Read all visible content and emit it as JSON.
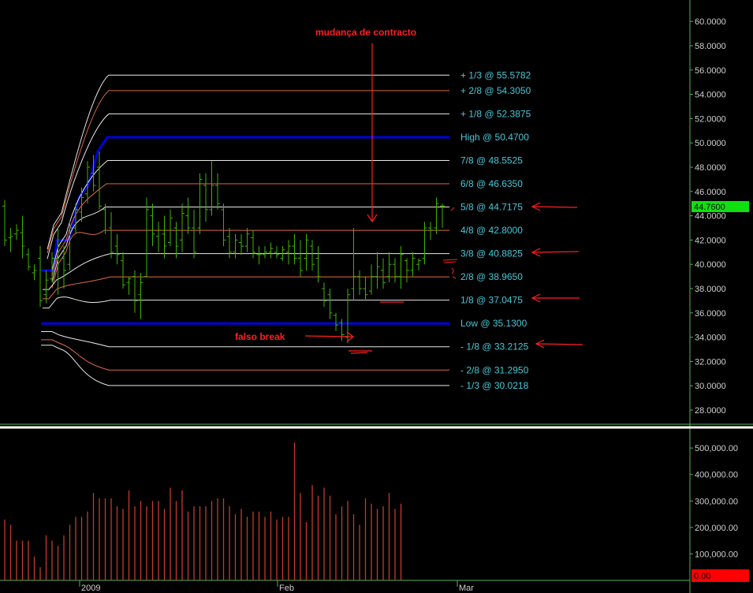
{
  "colors": {
    "background": "#000000",
    "price_bar": "#3cb400",
    "frame_line": "#5aaf5a",
    "volume_bar": "#c43a2a",
    "high_low_line": "#0000e0",
    "white_line": "#e8e8e8",
    "orange_line": "#e06a48",
    "label_cyan": "#45c8d8",
    "axis_text": "#cfcfcf",
    "annotation_red": "#ff2020",
    "last_price_bg": "#10e010",
    "last_volume_bg": "#ff0000"
  },
  "annotations": {
    "contract_change": "mudança de contracto",
    "false_break": "falso break"
  },
  "chart_data": [
    {
      "type": "bar",
      "subtype": "ohlc-with-murrey-levels",
      "ylim": [
        26.5,
        61.5
      ],
      "y_ticks": [
        28,
        30,
        32,
        34,
        36,
        38,
        40,
        42,
        44,
        46,
        48,
        50,
        52,
        54,
        56,
        58,
        60
      ],
      "y_tick_labels": [
        "28.0000",
        "30.0000",
        "32.0000",
        "34.0000",
        "36.0000",
        "38.0000",
        "40.0000",
        "42.0000",
        "44.0000",
        "46.0000",
        "48.0000",
        "50.0000",
        "52.0000",
        "54.0000",
        "56.0000",
        "58.0000",
        "60.0000"
      ],
      "last_price": "44.7600",
      "levels": [
        {
          "label": "+ 1/3 @ 55.5782",
          "value": 55.5782,
          "style": "white"
        },
        {
          "label": "+ 2/8 @ 54.3050",
          "value": 54.305,
          "style": "orange"
        },
        {
          "label": "+ 1/8 @ 52.3875",
          "value": 52.3875,
          "style": "white"
        },
        {
          "label": "High @ 50.4700",
          "value": 50.47,
          "style": "blue"
        },
        {
          "label": "7/8 @ 48.5525",
          "value": 48.5525,
          "style": "white"
        },
        {
          "label": "6/8 @ 46.6350",
          "value": 46.635,
          "style": "orange"
        },
        {
          "label": "5/8 @ 44.7175",
          "value": 44.7175,
          "style": "white"
        },
        {
          "label": "4/8 @ 42.8000",
          "value": 42.8,
          "style": "orange"
        },
        {
          "label": "3/8 @ 40.8825",
          "value": 40.8825,
          "style": "white"
        },
        {
          "label": "2/8 @ 38.9650",
          "value": 38.965,
          "style": "orange"
        },
        {
          "label": "1/8 @ 37.0475",
          "value": 37.0475,
          "style": "white"
        },
        {
          "label": "Low  @ 35.1300",
          "value": 35.13,
          "style": "blue"
        },
        {
          "label": "- 1/8 @ 33.2125",
          "value": 33.2125,
          "style": "white"
        },
        {
          "label": "- 2/8 @ 31.2950",
          "value": 31.295,
          "style": "orange"
        },
        {
          "label": "- 1/3 @ 30.0218",
          "value": 30.0218,
          "style": "white"
        }
      ],
      "bars": [
        {
          "i": 0,
          "h": 45.3,
          "l": 41.5,
          "o": 44.8,
          "c": 42.0
        },
        {
          "i": 1,
          "h": 43.0,
          "l": 41.0,
          "o": 42.2,
          "c": 42.3
        },
        {
          "i": 2,
          "h": 43.3,
          "l": 42.0,
          "o": 42.5,
          "c": 42.8
        },
        {
          "i": 3,
          "h": 44.0,
          "l": 40.5,
          "o": 42.6,
          "c": 41.5
        },
        {
          "i": 4,
          "h": 41.3,
          "l": 39.5,
          "o": 40.8,
          "c": 39.8
        },
        {
          "i": 5,
          "h": 40.0,
          "l": 38.7,
          "o": 39.3,
          "c": 39.5
        },
        {
          "i": 6,
          "h": 41.5,
          "l": 36.5,
          "o": 40.5,
          "c": 37.0
        },
        {
          "i": 7,
          "h": 39.5,
          "l": 36.8,
          "o": 37.5,
          "c": 38.7
        },
        {
          "i": 8,
          "h": 41.0,
          "l": 38.5,
          "o": 38.8,
          "c": 40.5
        },
        {
          "i": 9,
          "h": 43.0,
          "l": 37.5,
          "o": 40.5,
          "c": 41.5
        },
        {
          "i": 10,
          "h": 41.5,
          "l": 38.0,
          "o": 40.5,
          "c": 39.5
        },
        {
          "i": 11,
          "h": 43.5,
          "l": 39.5,
          "o": 40.0,
          "c": 43.0
        },
        {
          "i": 12,
          "h": 45.0,
          "l": 42.5,
          "o": 43.0,
          "c": 44.5
        },
        {
          "i": 13,
          "h": 46.3,
          "l": 43.5,
          "o": 44.3,
          "c": 45.5
        },
        {
          "i": 14,
          "h": 48.5,
          "l": 45.0,
          "o": 45.8,
          "c": 48.0
        },
        {
          "i": 15,
          "h": 49.0,
          "l": 46.0,
          "o": 47.5,
          "c": 46.5
        },
        {
          "i": 16,
          "h": 49.3,
          "l": 44.5,
          "o": 48.0,
          "c": 44.8
        },
        {
          "i": 17,
          "h": 45.0,
          "l": 42.5,
          "o": 44.5,
          "c": 42.8
        },
        {
          "i": 18,
          "h": 44.3,
          "l": 40.5,
          "o": 43.0,
          "c": 41.0
        },
        {
          "i": 19,
          "h": 42.5,
          "l": 40.0,
          "o": 41.5,
          "c": 40.8
        },
        {
          "i": 20,
          "h": 41.0,
          "l": 38.0,
          "o": 40.3,
          "c": 38.3
        },
        {
          "i": 21,
          "h": 39.0,
          "l": 37.5,
          "o": 38.5,
          "c": 38.8
        },
        {
          "i": 22,
          "h": 39.5,
          "l": 36.0,
          "o": 39.0,
          "c": 37.0
        },
        {
          "i": 23,
          "h": 39.3,
          "l": 35.5,
          "o": 37.5,
          "c": 38.5
        },
        {
          "i": 24,
          "h": 45.5,
          "l": 39.0,
          "o": 39.0,
          "c": 44.5
        },
        {
          "i": 25,
          "h": 45.0,
          "l": 41.5,
          "o": 44.0,
          "c": 42.5
        },
        {
          "i": 26,
          "h": 43.5,
          "l": 41.0,
          "o": 42.3,
          "c": 42.8
        },
        {
          "i": 27,
          "h": 44.0,
          "l": 40.5,
          "o": 42.5,
          "c": 41.5
        },
        {
          "i": 28,
          "h": 44.5,
          "l": 41.5,
          "o": 41.8,
          "c": 43.8
        },
        {
          "i": 29,
          "h": 43.5,
          "l": 40.5,
          "o": 43.0,
          "c": 41.5
        },
        {
          "i": 30,
          "h": 45.0,
          "l": 41.0,
          "o": 42.0,
          "c": 44.2
        },
        {
          "i": 31,
          "h": 45.5,
          "l": 42.5,
          "o": 44.0,
          "c": 43.0
        },
        {
          "i": 32,
          "h": 44.5,
          "l": 40.5,
          "o": 43.0,
          "c": 41.0
        },
        {
          "i": 33,
          "h": 47.5,
          "l": 42.5,
          "o": 43.0,
          "c": 47.0
        },
        {
          "i": 34,
          "h": 47.5,
          "l": 43.5,
          "o": 46.5,
          "c": 44.5
        },
        {
          "i": 35,
          "h": 48.5,
          "l": 44.0,
          "o": 44.5,
          "c": 46.5
        },
        {
          "i": 36,
          "h": 47.5,
          "l": 44.5,
          "o": 46.5,
          "c": 45.0
        },
        {
          "i": 37,
          "h": 45.0,
          "l": 41.5,
          "o": 44.5,
          "c": 42.0
        },
        {
          "i": 38,
          "h": 43.0,
          "l": 40.5,
          "o": 42.3,
          "c": 41.0
        },
        {
          "i": 39,
          "h": 42.5,
          "l": 40.5,
          "o": 41.0,
          "c": 42.0
        },
        {
          "i": 40,
          "h": 42.5,
          "l": 40.8,
          "o": 41.8,
          "c": 41.5
        },
        {
          "i": 41,
          "h": 43.0,
          "l": 41.0,
          "o": 41.5,
          "c": 42.5
        },
        {
          "i": 42,
          "h": 42.8,
          "l": 40.5,
          "o": 42.2,
          "c": 41.0
        },
        {
          "i": 43,
          "h": 41.5,
          "l": 40.0,
          "o": 40.8,
          "c": 40.8
        },
        {
          "i": 44,
          "h": 41.5,
          "l": 40.5,
          "o": 40.8,
          "c": 41.0
        },
        {
          "i": 45,
          "h": 41.8,
          "l": 40.5,
          "o": 41.0,
          "c": 41.3
        },
        {
          "i": 46,
          "h": 41.5,
          "l": 40.5,
          "o": 41.0,
          "c": 40.8
        },
        {
          "i": 47,
          "h": 41.5,
          "l": 40.3,
          "o": 40.5,
          "c": 41.2
        },
        {
          "i": 48,
          "h": 42.0,
          "l": 40.0,
          "o": 41.0,
          "c": 41.5
        },
        {
          "i": 49,
          "h": 42.5,
          "l": 40.0,
          "o": 41.5,
          "c": 40.5
        },
        {
          "i": 50,
          "h": 42.0,
          "l": 39.0,
          "o": 40.5,
          "c": 39.5
        },
        {
          "i": 51,
          "h": 42.5,
          "l": 39.5,
          "o": 40.5,
          "c": 42.0
        },
        {
          "i": 52,
          "h": 42.0,
          "l": 39.5,
          "o": 41.5,
          "c": 40.0
        },
        {
          "i": 53,
          "h": 41.5,
          "l": 38.5,
          "o": 40.5,
          "c": 39.0
        },
        {
          "i": 54,
          "h": 38.5,
          "l": 36.5,
          "o": 38.0,
          "c": 37.0
        },
        {
          "i": 55,
          "h": 38.0,
          "l": 35.5,
          "o": 37.5,
          "c": 36.0
        },
        {
          "i": 56,
          "h": 36.0,
          "l": 34.5,
          "o": 35.8,
          "c": 35.0
        },
        {
          "i": 57,
          "h": 35.5,
          "l": 33.7,
          "o": 35.2,
          "c": 34.2
        },
        {
          "i": 58,
          "h": 38.0,
          "l": 33.5,
          "o": 34.0,
          "c": 37.5
        },
        {
          "i": 59,
          "h": 43.0,
          "l": 37.0,
          "o": 38.0,
          "c": 39.0
        },
        {
          "i": 60,
          "h": 39.5,
          "l": 37.5,
          "o": 39.0,
          "c": 38.0
        },
        {
          "i": 61,
          "h": 39.0,
          "l": 37.0,
          "o": 38.0,
          "c": 37.5
        },
        {
          "i": 62,
          "h": 40.0,
          "l": 37.5,
          "o": 37.8,
          "c": 39.0
        },
        {
          "i": 63,
          "h": 41.0,
          "l": 38.0,
          "o": 39.0,
          "c": 39.8
        },
        {
          "i": 64,
          "h": 40.5,
          "l": 38.0,
          "o": 39.5,
          "c": 38.5
        },
        {
          "i": 65,
          "h": 41.0,
          "l": 38.5,
          "o": 39.0,
          "c": 40.0
        },
        {
          "i": 66,
          "h": 40.5,
          "l": 38.5,
          "o": 40.0,
          "c": 39.0
        },
        {
          "i": 67,
          "h": 41.5,
          "l": 38.0,
          "o": 39.0,
          "c": 40.8
        },
        {
          "i": 68,
          "h": 40.5,
          "l": 38.5,
          "o": 40.3,
          "c": 39.5
        },
        {
          "i": 69,
          "h": 41.0,
          "l": 39.0,
          "o": 39.5,
          "c": 40.5
        },
        {
          "i": 70,
          "h": 40.5,
          "l": 39.5,
          "o": 40.0,
          "c": 40.3
        },
        {
          "i": 71,
          "h": 43.5,
          "l": 40.0,
          "o": 40.5,
          "c": 43.0
        },
        {
          "i": 72,
          "h": 43.5,
          "l": 42.0,
          "o": 43.0,
          "c": 42.8
        },
        {
          "i": 73,
          "h": 45.5,
          "l": 42.5,
          "o": 43.0,
          "c": 45.0
        },
        {
          "i": 74,
          "h": 45.0,
          "l": 43.0,
          "o": 44.8,
          "c": 44.8
        }
      ]
    },
    {
      "type": "bar",
      "name": "volume",
      "ylim": [
        0,
        560000
      ],
      "y_ticks": [
        100000,
        200000,
        300000,
        400000,
        500000
      ],
      "y_tick_labels": [
        "100,000.00",
        "200,000.00",
        "300,000.00",
        "400,000.00",
        "500,000.00"
      ],
      "last_volume": "0.00",
      "x_axis_labels": [
        "2009",
        "Feb",
        "Mar"
      ],
      "values": [
        230000,
        210000,
        150000,
        150000,
        150000,
        90000,
        50000,
        170000,
        150000,
        130000,
        170000,
        210000,
        240000,
        240000,
        260000,
        330000,
        310000,
        310000,
        310000,
        280000,
        270000,
        340000,
        280000,
        300000,
        280000,
        300000,
        300000,
        270000,
        350000,
        300000,
        340000,
        260000,
        280000,
        280000,
        280000,
        300000,
        310000,
        310000,
        280000,
        250000,
        270000,
        240000,
        260000,
        260000,
        240000,
        260000,
        230000,
        240000,
        240000,
        520000,
        330000,
        220000,
        360000,
        320000,
        350000,
        320000,
        250000,
        280000,
        300000,
        250000,
        210000,
        310000,
        290000,
        270000,
        280000,
        330000,
        270000,
        290000,
        0,
        0,
        0,
        0,
        0,
        0,
        0
      ]
    }
  ]
}
